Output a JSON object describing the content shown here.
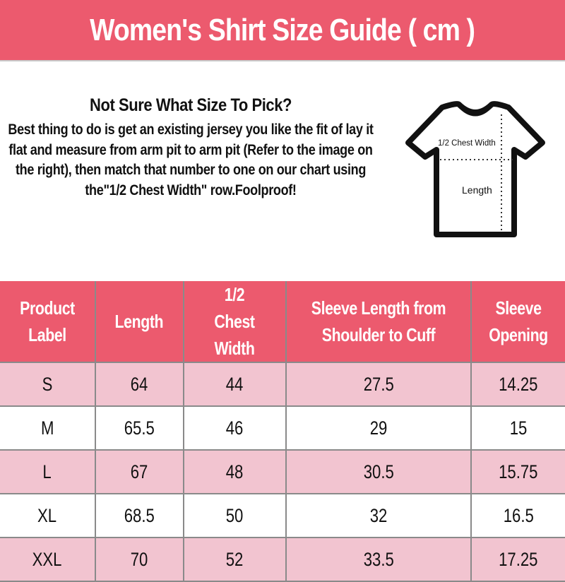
{
  "title": "Women's Shirt Size Guide ( cm )",
  "intro": {
    "heading": "Not Sure What Size To Pick?",
    "body": "Best thing to do is get an existing jersey you like the fit of lay it flat and measure from arm pit to arm pit (Refer to the image on the right), then match that number to one on our chart using the\"1/2 Chest Width\" row.Foolproof!"
  },
  "diagram": {
    "chest_label": "1/2 Chest Width",
    "length_label": "Length"
  },
  "colors": {
    "header": "#ec5a6e",
    "row_alt": "#f2c4d0"
  },
  "table": {
    "headers": [
      "Product Label",
      "Length",
      "1/2 Chest Width",
      "Sleeve Length from Shoulder to Cuff",
      "Sleeve Opening"
    ],
    "rows": [
      [
        "S",
        "64",
        "44",
        "27.5",
        "14.25"
      ],
      [
        "M",
        "65.5",
        "46",
        "29",
        "15"
      ],
      [
        "L",
        "67",
        "48",
        "30.5",
        "15.75"
      ],
      [
        "XL",
        "68.5",
        "50",
        "32",
        "16.5"
      ],
      [
        "XXL",
        "70",
        "52",
        "33.5",
        "17.25"
      ]
    ]
  }
}
